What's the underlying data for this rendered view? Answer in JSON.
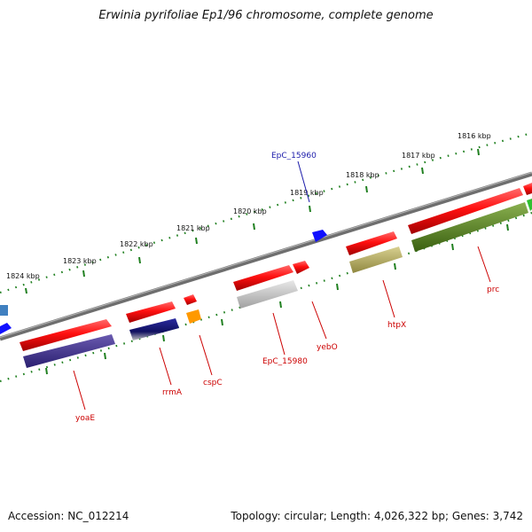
{
  "title": "Erwinia pyrifoliae Ep1/96 chromosome, complete genome",
  "footer": {
    "accession": "Accession: NC_012214",
    "summary": "Topology: circular; Length: 4,026,322 bp; Genes: 3,742"
  },
  "kbp_labels": [
    "1824 kbp",
    "1823 kbp",
    "1822 kbp",
    "1821 kbp",
    "1820 kbp",
    "1819 kbp",
    "1818 kbp",
    "1817 kbp",
    "1816 kbp"
  ],
  "gene_labels": [
    {
      "name": "EpC_15960",
      "color": "#1a1aaa"
    },
    {
      "name": "prc",
      "color": "#cc0000"
    },
    {
      "name": "htpX",
      "color": "#cc0000"
    },
    {
      "name": "yebO",
      "color": "#cc0000"
    },
    {
      "name": "EpC_15980",
      "color": "#cc0000"
    },
    {
      "name": "cspC",
      "color": "#cc0000"
    },
    {
      "name": "rrmA",
      "color": "#cc0000"
    },
    {
      "name": "yoaE",
      "color": "#cc0000"
    }
  ],
  "colors": {
    "backbone": "#7a7a7a",
    "cds_red": "#e00000",
    "blue": "#1010ff",
    "navy": "#1a1a80",
    "purple": "#4a3a90",
    "grey": "#b8b8b8",
    "olive": "#b8b070",
    "green": "#5a8a20",
    "orange": "#ff9900",
    "ticks": "#208020"
  }
}
